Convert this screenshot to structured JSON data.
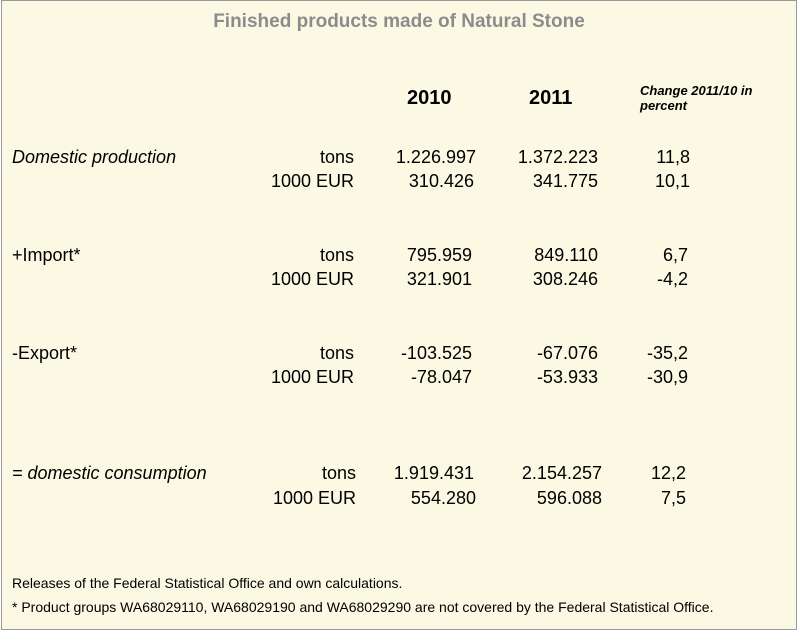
{
  "title": "Finished products made of Natural Stone",
  "headers": {
    "y2010": "2010",
    "y2011": "2011",
    "change": "Change 2011/10 in percent"
  },
  "sections": [
    {
      "label": "Domestic production",
      "rows": [
        {
          "unit": "tons",
          "v2010": "1.226.997",
          "v2011": "1.372.223",
          "pct": "11,8"
        },
        {
          "unit": "1000 EUR",
          "v2010": "310.426",
          "v2011": "341.775",
          "pct": "10,1"
        }
      ]
    },
    {
      "label": "+Import*",
      "rows": [
        {
          "unit": "tons",
          "v2010": "795.959",
          "v2011": "849.110",
          "pct": "6,7"
        },
        {
          "unit": "1000 EUR",
          "v2010": "321.901",
          "v2011": "308.246",
          "pct": "-4,2"
        }
      ]
    },
    {
      "label": "-Export*",
      "rows": [
        {
          "unit": "tons",
          "v2010": "-103.525",
          "v2011": "-67.076",
          "pct": "-35,2"
        },
        {
          "unit": "1000 EUR",
          "v2010": "-78.047",
          "v2011": "-53.933",
          "pct": "-30,9"
        }
      ]
    },
    {
      "label": "= domestic consumption",
      "rows": [
        {
          "unit": "tons",
          "v2010": "1.919.431",
          "v2011": "2.154.257",
          "pct": "12,2"
        },
        {
          "unit": "1000 EUR",
          "v2010": "554.280",
          "v2011": "596.088",
          "pct": "7,5"
        }
      ]
    }
  ],
  "footnotes": [
    "Releases of the Federal Statistical Office and own calculations.",
    "* Product groups WA68029110, WA68029190 and WA68029290 are not covered by the Federal Statistical Office."
  ]
}
